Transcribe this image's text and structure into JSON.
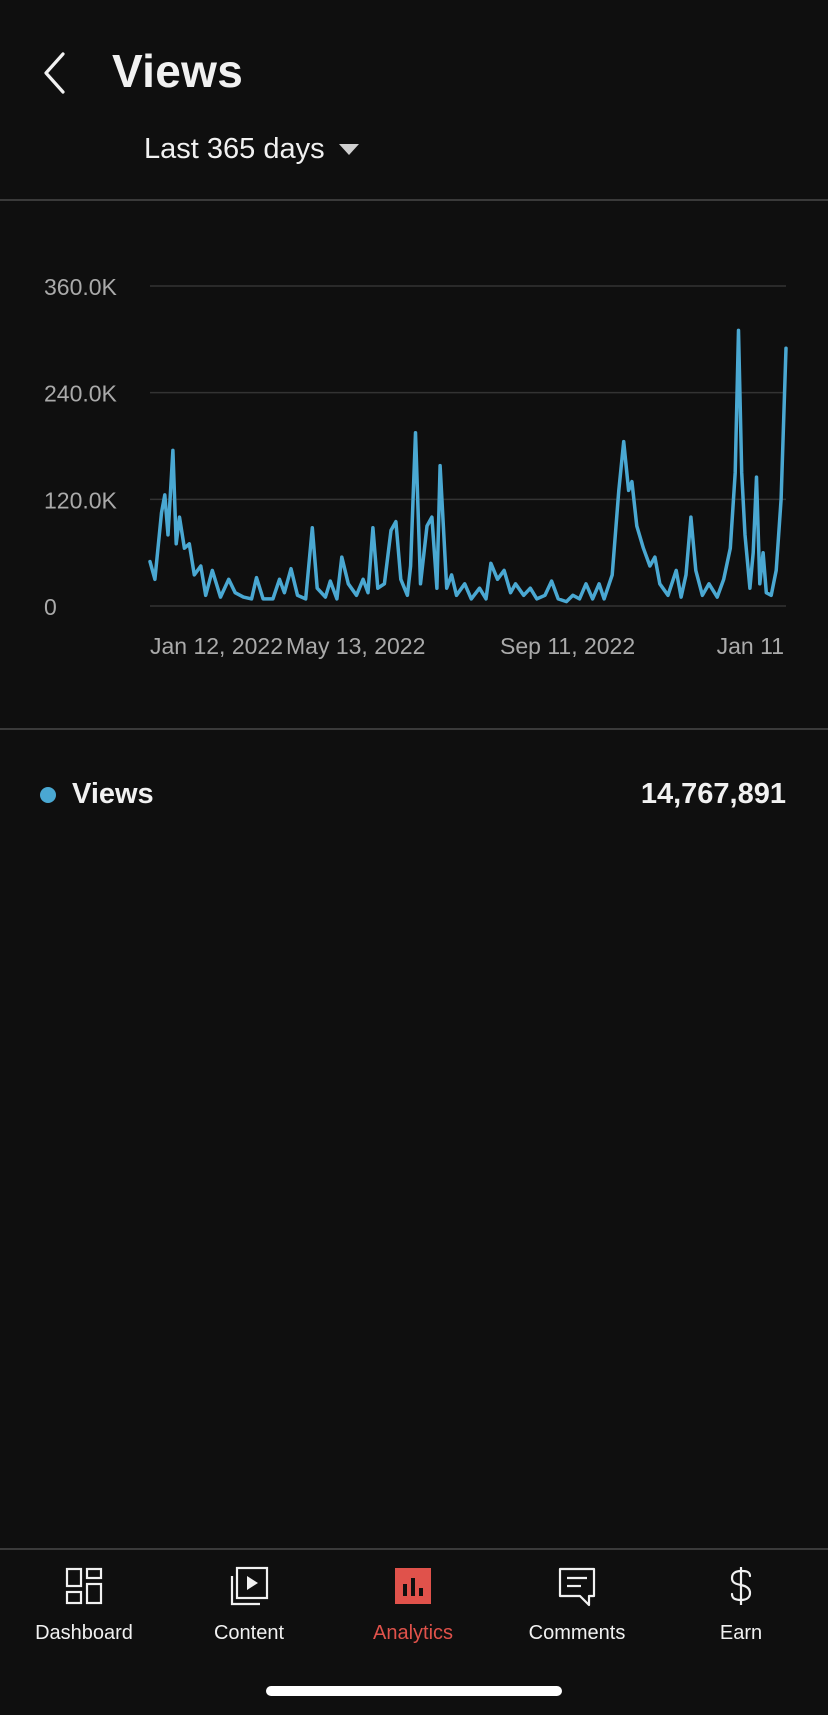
{
  "header": {
    "title": "Views",
    "date_range": "Last 365 days"
  },
  "colors": {
    "background": "#0f0f0f",
    "series": "#4aa8d2",
    "accent": "#e0524b",
    "gridline": "#333333"
  },
  "chart_data": {
    "type": "line",
    "title": "",
    "xlabel": "",
    "ylabel": "",
    "y_ticks": [
      "360.0K",
      "240.0K",
      "120.0K",
      "0"
    ],
    "y_tick_values": [
      360000,
      240000,
      120000,
      0
    ],
    "x_ticks": [
      "Jan 12, 2022",
      "May 13, 2022",
      "Sep 11, 2022",
      "Jan 11"
    ],
    "ylim": [
      0,
      360000
    ],
    "series": [
      {
        "name": "Views",
        "points": [
          [
            "2022-01-12",
            50000
          ],
          [
            "2022-01-15",
            30000
          ],
          [
            "2022-01-19",
            105000
          ],
          [
            "2022-01-21",
            125000
          ],
          [
            "2022-01-23",
            80000
          ],
          [
            "2022-01-26",
            175000
          ],
          [
            "2022-01-28",
            70000
          ],
          [
            "2022-01-30",
            100000
          ],
          [
            "2022-02-02",
            65000
          ],
          [
            "2022-02-05",
            70000
          ],
          [
            "2022-02-08",
            35000
          ],
          [
            "2022-02-12",
            45000
          ],
          [
            "2022-02-15",
            12000
          ],
          [
            "2022-02-19",
            40000
          ],
          [
            "2022-02-24",
            10000
          ],
          [
            "2022-03-01",
            30000
          ],
          [
            "2022-03-05",
            15000
          ],
          [
            "2022-03-10",
            10000
          ],
          [
            "2022-03-15",
            8000
          ],
          [
            "2022-03-18",
            32000
          ],
          [
            "2022-03-22",
            8000
          ],
          [
            "2022-03-28",
            8000
          ],
          [
            "2022-04-01",
            30000
          ],
          [
            "2022-04-04",
            15000
          ],
          [
            "2022-04-08",
            42000
          ],
          [
            "2022-04-12",
            12000
          ],
          [
            "2022-04-17",
            8000
          ],
          [
            "2022-04-21",
            88000
          ],
          [
            "2022-04-24",
            20000
          ],
          [
            "2022-04-29",
            10000
          ],
          [
            "2022-05-02",
            28000
          ],
          [
            "2022-05-06",
            8000
          ],
          [
            "2022-05-09",
            55000
          ],
          [
            "2022-05-13",
            25000
          ],
          [
            "2022-05-18",
            12000
          ],
          [
            "2022-05-22",
            30000
          ],
          [
            "2022-05-25",
            15000
          ],
          [
            "2022-05-28",
            88000
          ],
          [
            "2022-05-31",
            20000
          ],
          [
            "2022-06-04",
            25000
          ],
          [
            "2022-06-08",
            85000
          ],
          [
            "2022-06-11",
            95000
          ],
          [
            "2022-06-14",
            30000
          ],
          [
            "2022-06-18",
            12000
          ],
          [
            "2022-06-20",
            45000
          ],
          [
            "2022-06-23",
            195000
          ],
          [
            "2022-06-26",
            25000
          ],
          [
            "2022-06-30",
            90000
          ],
          [
            "2022-07-03",
            100000
          ],
          [
            "2022-07-06",
            20000
          ],
          [
            "2022-07-08",
            158000
          ],
          [
            "2022-07-12",
            20000
          ],
          [
            "2022-07-15",
            35000
          ],
          [
            "2022-07-18",
            12000
          ],
          [
            "2022-07-23",
            25000
          ],
          [
            "2022-07-27",
            8000
          ],
          [
            "2022-08-01",
            20000
          ],
          [
            "2022-08-05",
            8000
          ],
          [
            "2022-08-08",
            48000
          ],
          [
            "2022-08-12",
            30000
          ],
          [
            "2022-08-16",
            40000
          ],
          [
            "2022-08-20",
            15000
          ],
          [
            "2022-08-23",
            25000
          ],
          [
            "2022-08-28",
            12000
          ],
          [
            "2022-09-01",
            20000
          ],
          [
            "2022-09-05",
            8000
          ],
          [
            "2022-09-10",
            12000
          ],
          [
            "2022-09-14",
            28000
          ],
          [
            "2022-09-18",
            8000
          ],
          [
            "2022-09-23",
            5000
          ],
          [
            "2022-09-27",
            12000
          ],
          [
            "2022-10-01",
            8000
          ],
          [
            "2022-10-05",
            25000
          ],
          [
            "2022-10-09",
            8000
          ],
          [
            "2022-10-13",
            25000
          ],
          [
            "2022-10-16",
            8000
          ],
          [
            "2022-10-21",
            35000
          ],
          [
            "2022-10-25",
            130000
          ],
          [
            "2022-10-28",
            185000
          ],
          [
            "2022-10-31",
            130000
          ],
          [
            "2022-11-02",
            140000
          ],
          [
            "2022-11-05",
            90000
          ],
          [
            "2022-11-09",
            65000
          ],
          [
            "2022-11-13",
            45000
          ],
          [
            "2022-11-16",
            55000
          ],
          [
            "2022-11-19",
            25000
          ],
          [
            "2022-11-24",
            12000
          ],
          [
            "2022-11-29",
            40000
          ],
          [
            "2022-12-02",
            10000
          ],
          [
            "2022-12-05",
            35000
          ],
          [
            "2022-12-08",
            100000
          ],
          [
            "2022-12-11",
            40000
          ],
          [
            "2022-12-15",
            12000
          ],
          [
            "2022-12-19",
            25000
          ],
          [
            "2022-12-24",
            10000
          ],
          [
            "2022-12-28",
            30000
          ],
          [
            "2023-01-01",
            65000
          ],
          [
            "2023-01-04",
            150000
          ],
          [
            "2023-01-06",
            310000
          ],
          [
            "2023-01-08",
            150000
          ],
          [
            "2023-01-10",
            80000
          ],
          [
            "2023-01-13",
            20000
          ],
          [
            "2023-01-15",
            60000
          ],
          [
            "2023-01-17",
            145000
          ],
          [
            "2023-01-19",
            25000
          ],
          [
            "2023-01-21",
            60000
          ],
          [
            "2023-01-23",
            15000
          ],
          [
            "2023-01-26",
            12000
          ],
          [
            "2023-01-29",
            40000
          ],
          [
            "2023-02-01",
            120000
          ],
          [
            "2023-02-04",
            290000
          ]
        ]
      }
    ]
  },
  "legend": {
    "series_name": "Views",
    "total": "14,767,891"
  },
  "bottom_nav": {
    "dashboard": "Dashboard",
    "content": "Content",
    "analytics": "Analytics",
    "comments": "Comments",
    "earn": "Earn"
  }
}
